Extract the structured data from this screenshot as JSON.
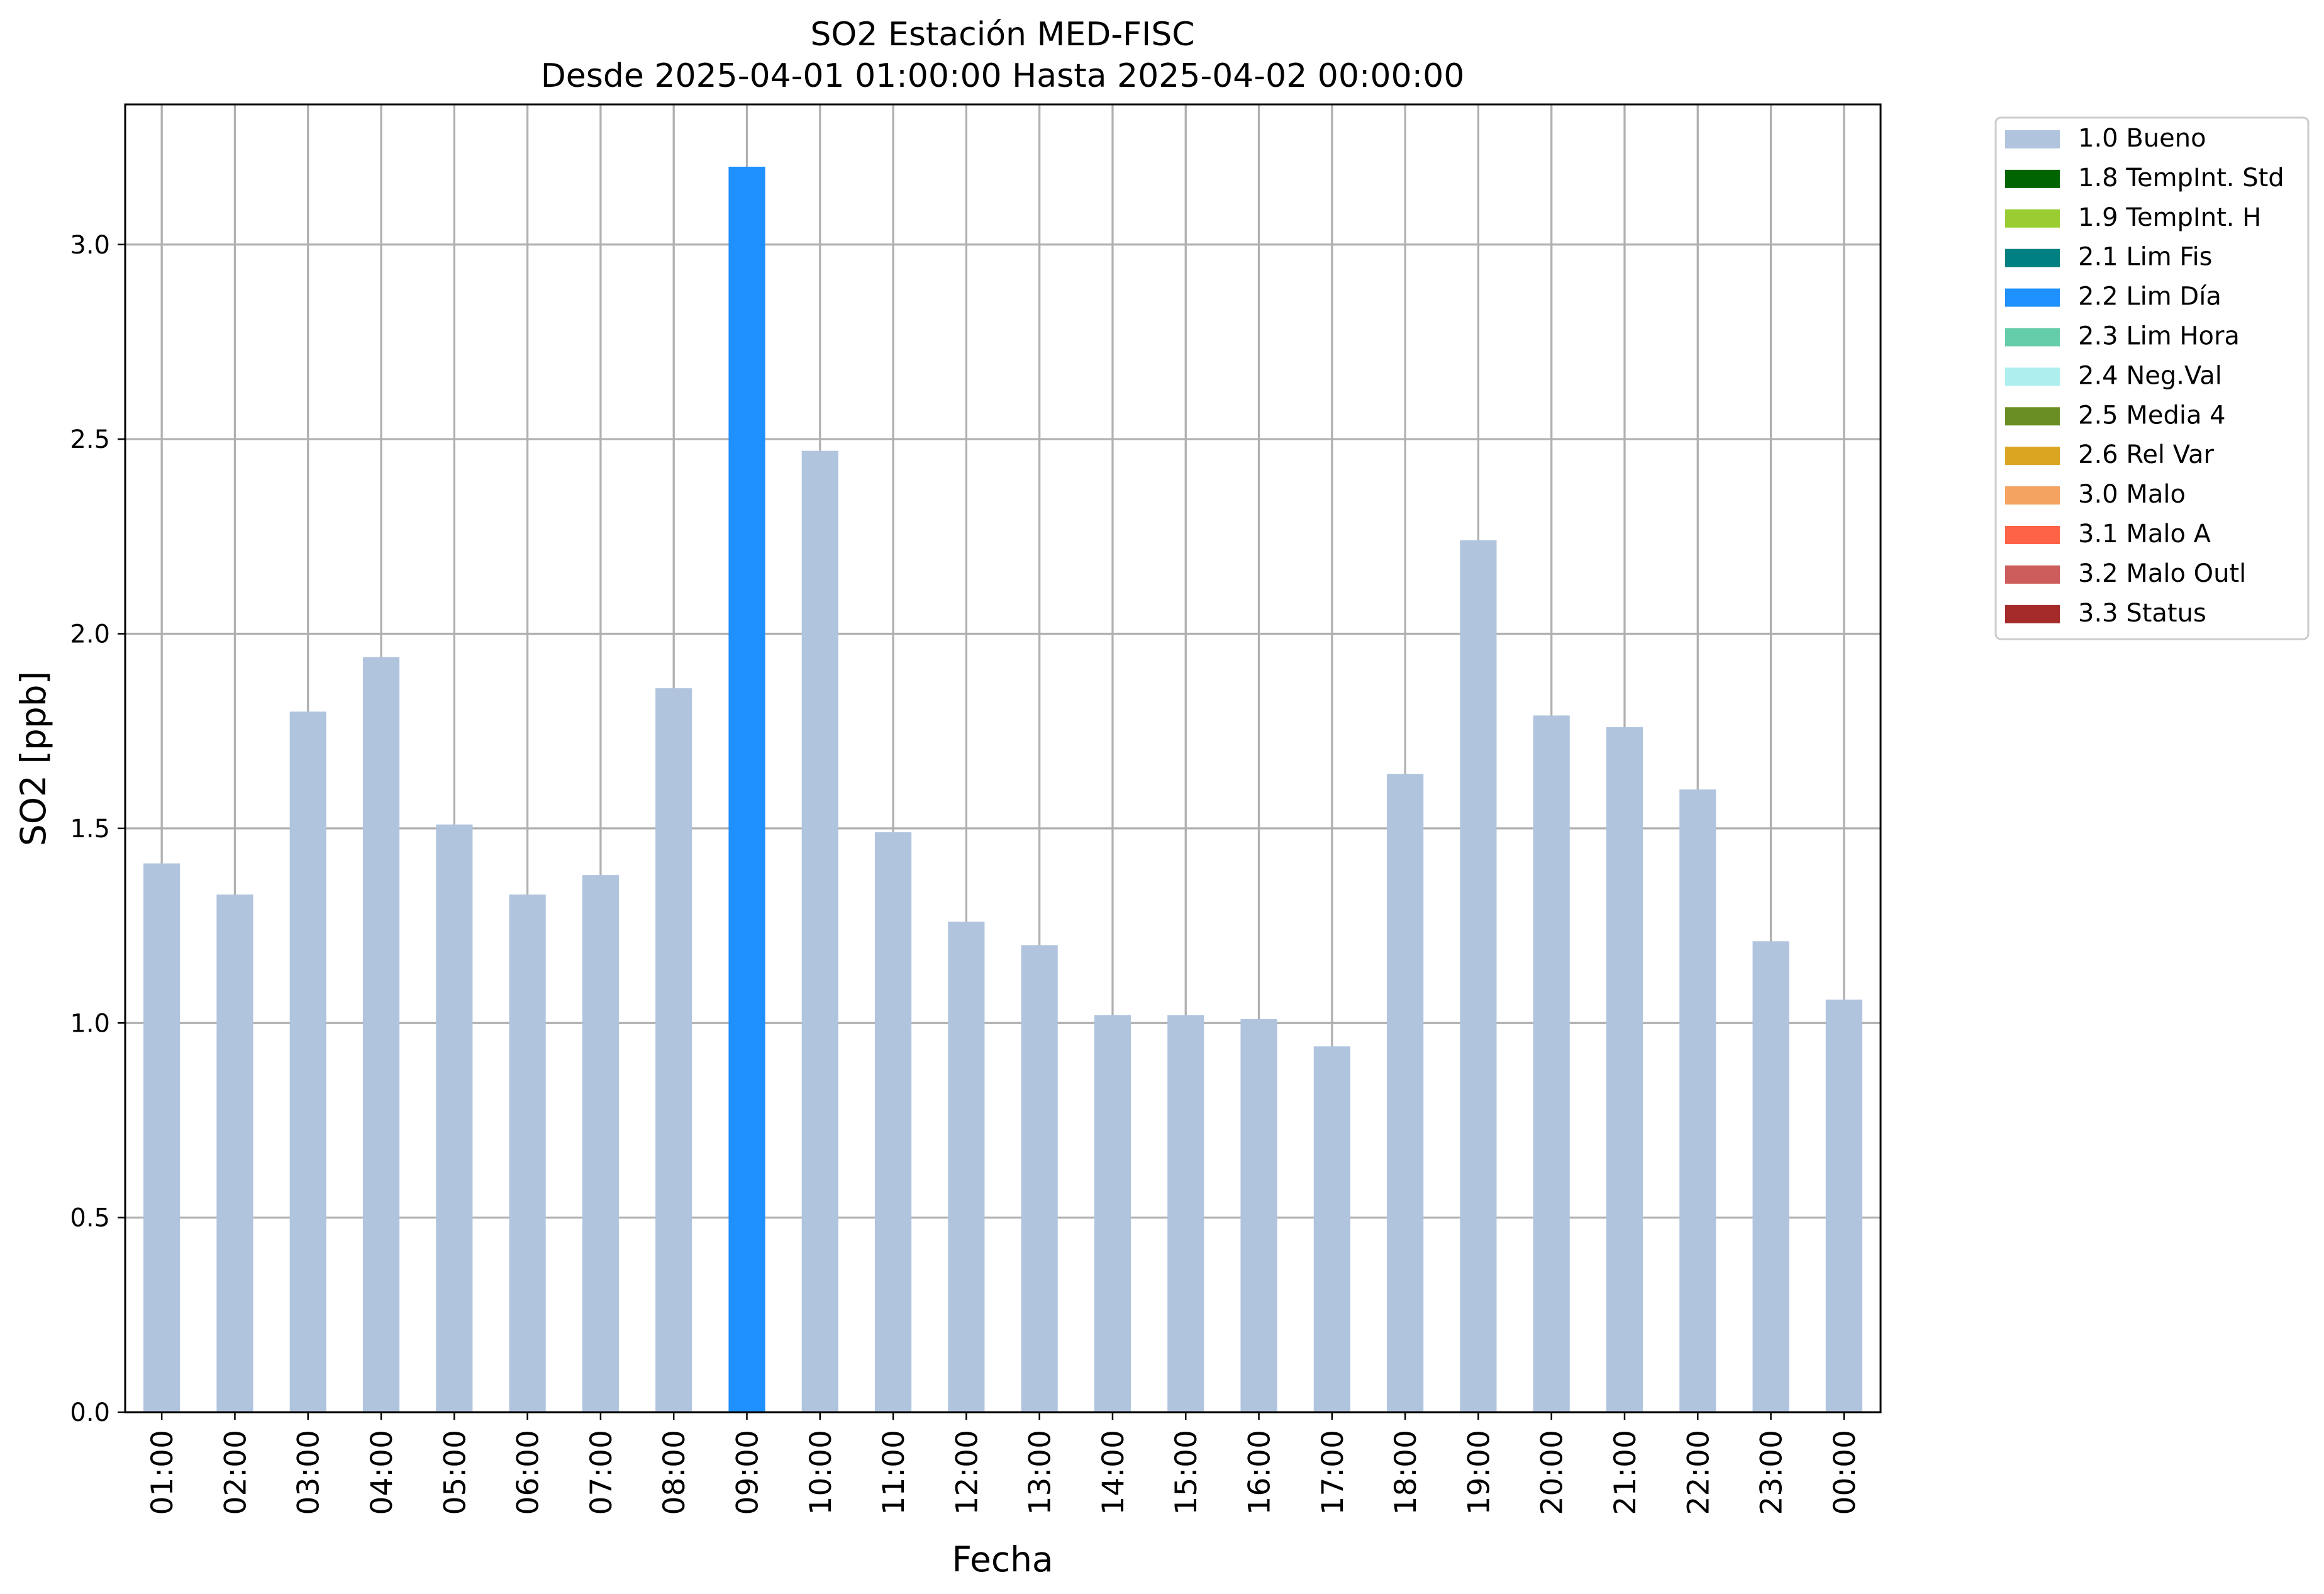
{
  "chart_data": {
    "type": "bar",
    "title": "SO2 Estación MED-FISC",
    "subtitle": "Desde 2025-04-01 01:00:00 Hasta 2025-04-02 00:00:00",
    "xlabel": "Fecha",
    "ylabel": "SO2 [ppb]",
    "ylim": [
      0,
      3.36
    ],
    "yticks": [
      "0.0",
      "0.5",
      "1.0",
      "1.5",
      "2.0",
      "2.5",
      "3.0"
    ],
    "grid": true,
    "legend_position": "outside-top-right",
    "categories": [
      "01:00",
      "02:00",
      "03:00",
      "04:00",
      "05:00",
      "06:00",
      "07:00",
      "08:00",
      "09:00",
      "10:00",
      "11:00",
      "12:00",
      "13:00",
      "14:00",
      "15:00",
      "16:00",
      "17:00",
      "18:00",
      "19:00",
      "20:00",
      "21:00",
      "22:00",
      "23:00",
      "00:00"
    ],
    "values": [
      1.41,
      1.33,
      1.8,
      1.94,
      1.51,
      1.33,
      1.38,
      1.86,
      3.2,
      2.47,
      1.49,
      1.26,
      1.2,
      1.02,
      1.02,
      1.01,
      0.94,
      1.64,
      2.24,
      1.79,
      1.76,
      1.6,
      1.21,
      1.06
    ],
    "flags": [
      "1.0 Bueno",
      "1.0 Bueno",
      "1.0 Bueno",
      "1.0 Bueno",
      "1.0 Bueno",
      "1.0 Bueno",
      "1.0 Bueno",
      "1.0 Bueno",
      "2.2 Lim Día",
      "1.0 Bueno",
      "1.0 Bueno",
      "1.0 Bueno",
      "1.0 Bueno",
      "1.0 Bueno",
      "1.0 Bueno",
      "1.0 Bueno",
      "1.0 Bueno",
      "1.0 Bueno",
      "1.0 Bueno",
      "1.0 Bueno",
      "1.0 Bueno",
      "1.0 Bueno",
      "1.0 Bueno",
      "1.0 Bueno"
    ],
    "legend": [
      {
        "label": "1.0 Bueno",
        "color": "#b0c4de"
      },
      {
        "label": "1.8 TempInt. Std",
        "color": "#006400"
      },
      {
        "label": "1.9 TempInt. H",
        "color": "#9acd32"
      },
      {
        "label": "2.1 Lim Fis",
        "color": "#008080"
      },
      {
        "label": "2.2 Lim Día",
        "color": "#1e90ff"
      },
      {
        "label": "2.3 Lim Hora",
        "color": "#66cdaa"
      },
      {
        "label": "2.4 Neg.Val",
        "color": "#afeeee"
      },
      {
        "label": "2.5 Media 4",
        "color": "#6b8e23"
      },
      {
        "label": "2.6 Rel Var",
        "color": "#daa520"
      },
      {
        "label": "3.0 Malo",
        "color": "#f4a460"
      },
      {
        "label": "3.1 Malo A",
        "color": "#ff6347"
      },
      {
        "label": "3.2 Malo Outl",
        "color": "#cd5c5c"
      },
      {
        "label": "3.3 Status",
        "color": "#a52a2a"
      }
    ]
  }
}
